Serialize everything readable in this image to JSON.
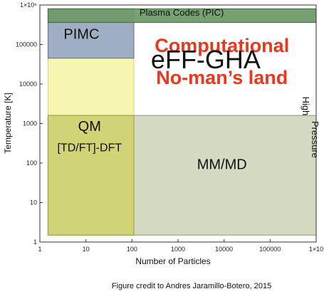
{
  "chart_data": {
    "type": "area",
    "title": "",
    "xlabel": "Number of Particles",
    "ylabel": "Temperature [K]",
    "x_scale": "log",
    "y_scale": "log",
    "xlim": [
      1,
      1000000
    ],
    "ylim": [
      1,
      1000000
    ],
    "grid": false,
    "x_ticks": [
      {
        "value": 1,
        "label": "1"
      },
      {
        "value": 10,
        "label": "10"
      },
      {
        "value": 100,
        "label": "100"
      },
      {
        "value": 1000,
        "label": "1000"
      },
      {
        "value": 10000,
        "label": "10000"
      },
      {
        "value": 100000,
        "label": "100000"
      },
      {
        "value": 1000000,
        "label": "1×10"
      }
    ],
    "y_ticks": [
      {
        "value": 1,
        "label": "1"
      },
      {
        "value": 10,
        "label": "10"
      },
      {
        "value": 100,
        "label": "100"
      },
      {
        "value": 1000,
        "label": "1000"
      },
      {
        "value": 10000,
        "label": "10000"
      },
      {
        "value": 100000,
        "label": "100000"
      },
      {
        "value": 1000000,
        "label": "1×10⁶"
      }
    ],
    "regions": [
      {
        "name": "",
        "x_range": [
          1.5,
          110
        ],
        "y_range": [
          1.5,
          45000
        ],
        "color": "#f5f5a8",
        "opacity": 0.9
      },
      {
        "name": "MM/MD",
        "x_range": [
          1.5,
          1000000
        ],
        "y_range": [
          1.5,
          1600
        ],
        "color": "#b7c39a",
        "opacity": 0.6
      },
      {
        "name": "QM\n[TD/FT]-DFT",
        "x_range": [
          1.5,
          110
        ],
        "y_range": [
          1.5,
          1600
        ],
        "color": "#cfd36a",
        "opacity": 0.8
      },
      {
        "name": "PIMC",
        "x_range": [
          1.5,
          110
        ],
        "y_range": [
          45000,
          800000
        ],
        "color": "#8fa0b8",
        "opacity": 0.85
      },
      {
        "name": "Plasma Codes (PIC)",
        "x_range": [
          1.5,
          1000000
        ],
        "y_range": [
          360000,
          800000
        ],
        "color": "#6f9a6a",
        "opacity": 0.95
      }
    ],
    "annotations": [
      {
        "text": "PIMC",
        "x": 8,
        "y": 140000
      },
      {
        "text": "Plasma Codes (PIC)",
        "x": 1200,
        "y": 540000
      },
      {
        "text": "QM",
        "x": 12,
        "y": 650
      },
      {
        "text": "[TD/FT]-DFT",
        "x": 12,
        "y": 200
      },
      {
        "text": "MM/MD",
        "x": 9000,
        "y": 70
      },
      {
        "text": "Computational",
        "x": 9000,
        "y": 65000,
        "color": "#e8381e"
      },
      {
        "text": "No-man’s land",
        "x": 9000,
        "y": 10000,
        "color": "#e8381e"
      },
      {
        "text": "eFF-GHA",
        "x": 4000,
        "y": 25000
      },
      {
        "text": "High",
        "x": 550000,
        "y": 18000
      },
      {
        "text": "Pressure",
        "x": 550000,
        "y": 2500
      }
    ],
    "footer": "Figure credit to Andres Jaramillo-Botero, 2015"
  }
}
